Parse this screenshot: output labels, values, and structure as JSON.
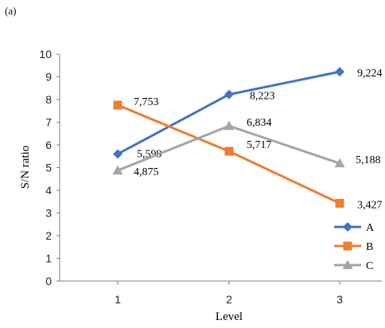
{
  "panel_label": "(a)",
  "chart_data": {
    "type": "line",
    "title": "",
    "xlabel": "Level",
    "ylabel": "S/N ratio",
    "x": [
      1,
      2,
      3
    ],
    "x_tick_labels": [
      "1",
      "2",
      "3"
    ],
    "ylim": [
      0,
      10
    ],
    "y_tick_labels": [
      "0",
      "1",
      "2",
      "3",
      "4",
      "5",
      "6",
      "7",
      "8",
      "9",
      "10"
    ],
    "grid": false,
    "legend_position": "right",
    "series": [
      {
        "name": "A",
        "values": [
          5.599,
          8.223,
          9.224
        ],
        "labels": [
          "5,599",
          "8,223",
          "9,224"
        ],
        "color": "#4472C4",
        "marker": "diamond"
      },
      {
        "name": "B",
        "values": [
          7.753,
          5.717,
          3.427
        ],
        "labels": [
          "7,753",
          "5,717",
          "3,427"
        ],
        "color": "#ED7D31",
        "marker": "square"
      },
      {
        "name": "C",
        "values": [
          4.875,
          6.834,
          5.188
        ],
        "labels": [
          "4,875",
          "6,834",
          "5,188"
        ],
        "color": "#A5A5A5",
        "marker": "triangle"
      }
    ]
  }
}
